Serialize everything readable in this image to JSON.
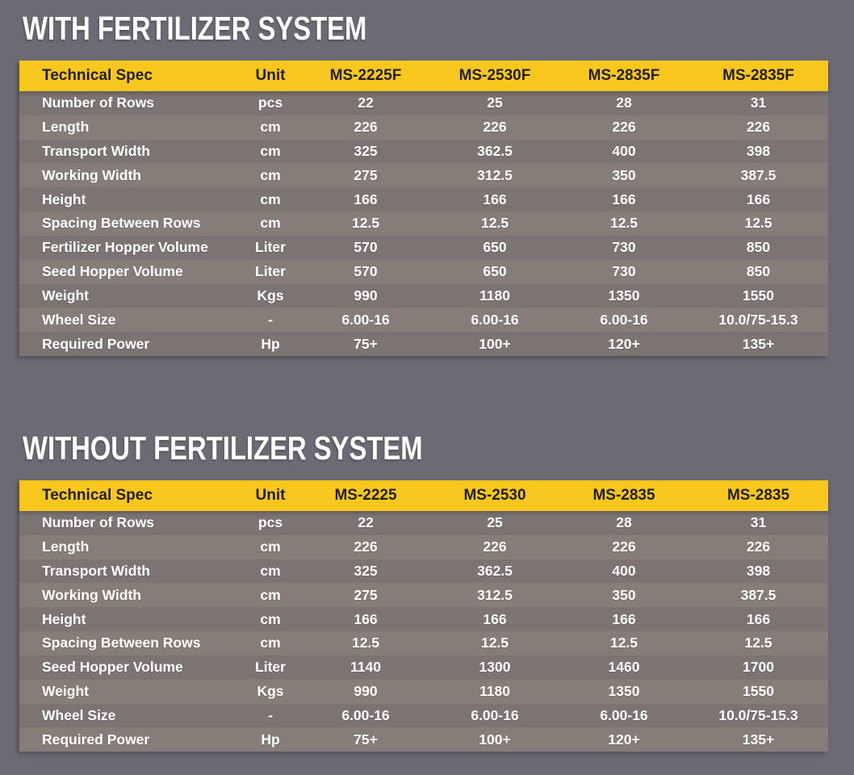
{
  "colors": {
    "background": "#6c6a74",
    "header_bg": "#f8c71e",
    "header_text": "#201f1d",
    "row_dark": "#7b7472",
    "row_light": "#877d78",
    "row_text": "#ffffff",
    "title_text": "#ffffff"
  },
  "tables": [
    {
      "title": "WITH FERTILIZER SYSTEM",
      "columns": [
        "Technical Spec",
        "Unit",
        "MS-2225F",
        "MS-2530F",
        "MS-2835F",
        "MS-2835F"
      ],
      "rows": [
        [
          "Number of Rows",
          "pcs",
          "22",
          "25",
          "28",
          "31"
        ],
        [
          "Length",
          "cm",
          "226",
          "226",
          "226",
          "226"
        ],
        [
          "Transport Width",
          "cm",
          "325",
          "362.5",
          "400",
          "398"
        ],
        [
          "Working Width",
          "cm",
          "275",
          "312.5",
          "350",
          "387.5"
        ],
        [
          "Height",
          "cm",
          "166",
          "166",
          "166",
          "166"
        ],
        [
          "Spacing Between Rows",
          "cm",
          "12.5",
          "12.5",
          "12.5",
          "12.5"
        ],
        [
          "Fertilizer Hopper Volume",
          "Liter",
          "570",
          "650",
          "730",
          "850"
        ],
        [
          "Seed Hopper Volume",
          "Liter",
          "570",
          "650",
          "730",
          "850"
        ],
        [
          "Weight",
          "Kgs",
          "990",
          "1180",
          "1350",
          "1550"
        ],
        [
          "Wheel Size",
          "-",
          "6.00-16",
          "6.00-16",
          "6.00-16",
          "10.0/75-15.3"
        ],
        [
          "Required Power",
          "Hp",
          "75+",
          "100+",
          "120+",
          "135+"
        ]
      ]
    },
    {
      "title": "WITHOUT FERTILIZER SYSTEM",
      "columns": [
        "Technical Spec",
        "Unit",
        "MS-2225",
        "MS-2530",
        "MS-2835",
        "MS-2835"
      ],
      "rows": [
        [
          "Number of Rows",
          "pcs",
          "22",
          "25",
          "28",
          "31"
        ],
        [
          "Length",
          "cm",
          "226",
          "226",
          "226",
          "226"
        ],
        [
          "Transport Width",
          "cm",
          "325",
          "362.5",
          "400",
          "398"
        ],
        [
          "Working Width",
          "cm",
          "275",
          "312.5",
          "350",
          "387.5"
        ],
        [
          "Height",
          "cm",
          "166",
          "166",
          "166",
          "166"
        ],
        [
          "Spacing Between Rows",
          "cm",
          "12.5",
          "12.5",
          "12.5",
          "12.5"
        ],
        [
          "Seed Hopper Volume",
          "Liter",
          "1140",
          "1300",
          "1460",
          "1700"
        ],
        [
          "Weight",
          "Kgs",
          "990",
          "1180",
          "1350",
          "1550"
        ],
        [
          "Wheel Size",
          "-",
          "6.00-16",
          "6.00-16",
          "6.00-16",
          "10.0/75-15.3"
        ],
        [
          "Required Power",
          "Hp",
          "75+",
          "100+",
          "120+",
          "135+"
        ]
      ]
    }
  ]
}
